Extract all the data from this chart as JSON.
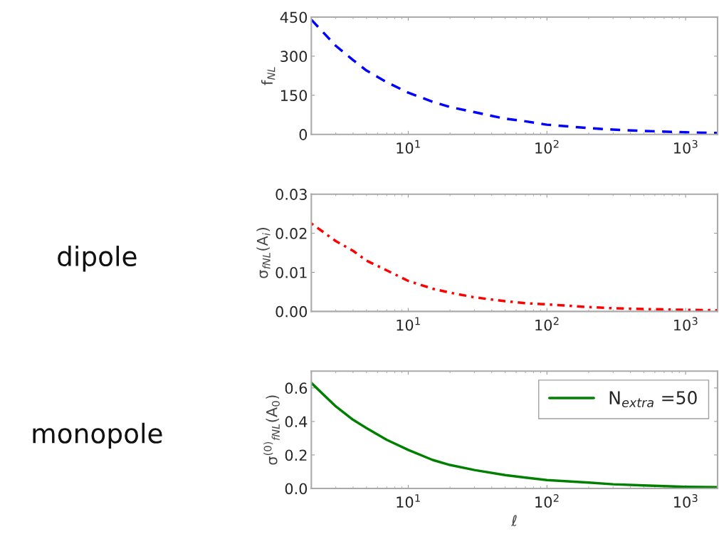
{
  "chart_data": [
    {
      "type": "line",
      "ylabel": "f$_{NL}$",
      "log": "x",
      "xlim": [
        2,
        1700
      ],
      "xticks": [
        {
          "value": 10,
          "label": "10$^{1}$"
        },
        {
          "value": 100,
          "label": "10$^{2}$"
        },
        {
          "value": 1000,
          "label": "10$^{3}$"
        }
      ],
      "ylim": [
        0,
        450
      ],
      "yticks": [
        0,
        150,
        300,
        450
      ],
      "grid": false,
      "line_style": "dashed",
      "x": [
        2,
        3,
        4,
        5,
        7,
        10,
        15,
        20,
        30,
        50,
        70,
        100,
        200,
        300,
        500,
        1000,
        1700
      ],
      "series": [
        {
          "color": "#0000ff",
          "values": [
            440,
            340,
            285,
            245,
            200,
            160,
            125,
            105,
            85,
            60,
            50,
            37,
            24,
            18,
            13,
            8,
            5
          ]
        }
      ]
    },
    {
      "type": "line",
      "ylabel": "σ$_{fNL}$(A$_{i}$)",
      "annotations": [
        "dipole"
      ],
      "log": "x",
      "xlim": [
        2,
        1700
      ],
      "xticks": [
        {
          "value": 10,
          "label": "10$^{1}$"
        },
        {
          "value": 100,
          "label": "10$^{2}$"
        },
        {
          "value": 1000,
          "label": "10$^{3}$"
        }
      ],
      "ylim": [
        0,
        0.03
      ],
      "yticks": [
        {
          "value": 0,
          "label": "0.00"
        },
        {
          "value": 0.01,
          "label": "0.01"
        },
        {
          "value": 0.02,
          "label": "0.02"
        },
        {
          "value": 0.03,
          "label": "0.03"
        }
      ],
      "grid": false,
      "line_style": "dotted",
      "x": [
        2,
        3,
        4,
        5,
        7,
        10,
        15,
        20,
        30,
        50,
        70,
        100,
        200,
        300,
        500,
        1000,
        1700
      ],
      "series": [
        {
          "color": "#ff0000",
          "values": [
            0.0225,
            0.018,
            0.0155,
            0.013,
            0.0105,
            0.0078,
            0.0058,
            0.0048,
            0.0036,
            0.0026,
            0.0021,
            0.0018,
            0.0011,
            0.0008,
            0.0006,
            0.0004,
            0.0003
          ]
        }
      ]
    },
    {
      "type": "line",
      "ylabel": "σ$^{(0)}$$_{fNL}$(A$_{0}$)",
      "xlabel": "ℓ",
      "annotations": [
        "monopole"
      ],
      "log": "x",
      "xlim": [
        2,
        1700
      ],
      "xticks": [
        {
          "value": 10,
          "label": "10$^{1}$"
        },
        {
          "value": 100,
          "label": "10$^{2}$"
        },
        {
          "value": 1000,
          "label": "10$^{3}$"
        }
      ],
      "ylim": [
        0,
        0.7
      ],
      "yticks": [
        {
          "value": 0,
          "label": "0.0"
        },
        0.2,
        0.4,
        0.6
      ],
      "grid": false,
      "legend": "top right",
      "line_style": "solid",
      "x": [
        2,
        3,
        4,
        5,
        7,
        10,
        15,
        20,
        30,
        50,
        70,
        100,
        200,
        300,
        500,
        1000,
        1700
      ],
      "series": [
        {
          "name": "N$_{extra}$ =50",
          "color": "#008000",
          "values": [
            0.63,
            0.49,
            0.41,
            0.36,
            0.29,
            0.23,
            0.17,
            0.14,
            0.11,
            0.08,
            0.065,
            0.05,
            0.035,
            0.025,
            0.018,
            0.01,
            0.007
          ]
        }
      ]
    }
  ]
}
